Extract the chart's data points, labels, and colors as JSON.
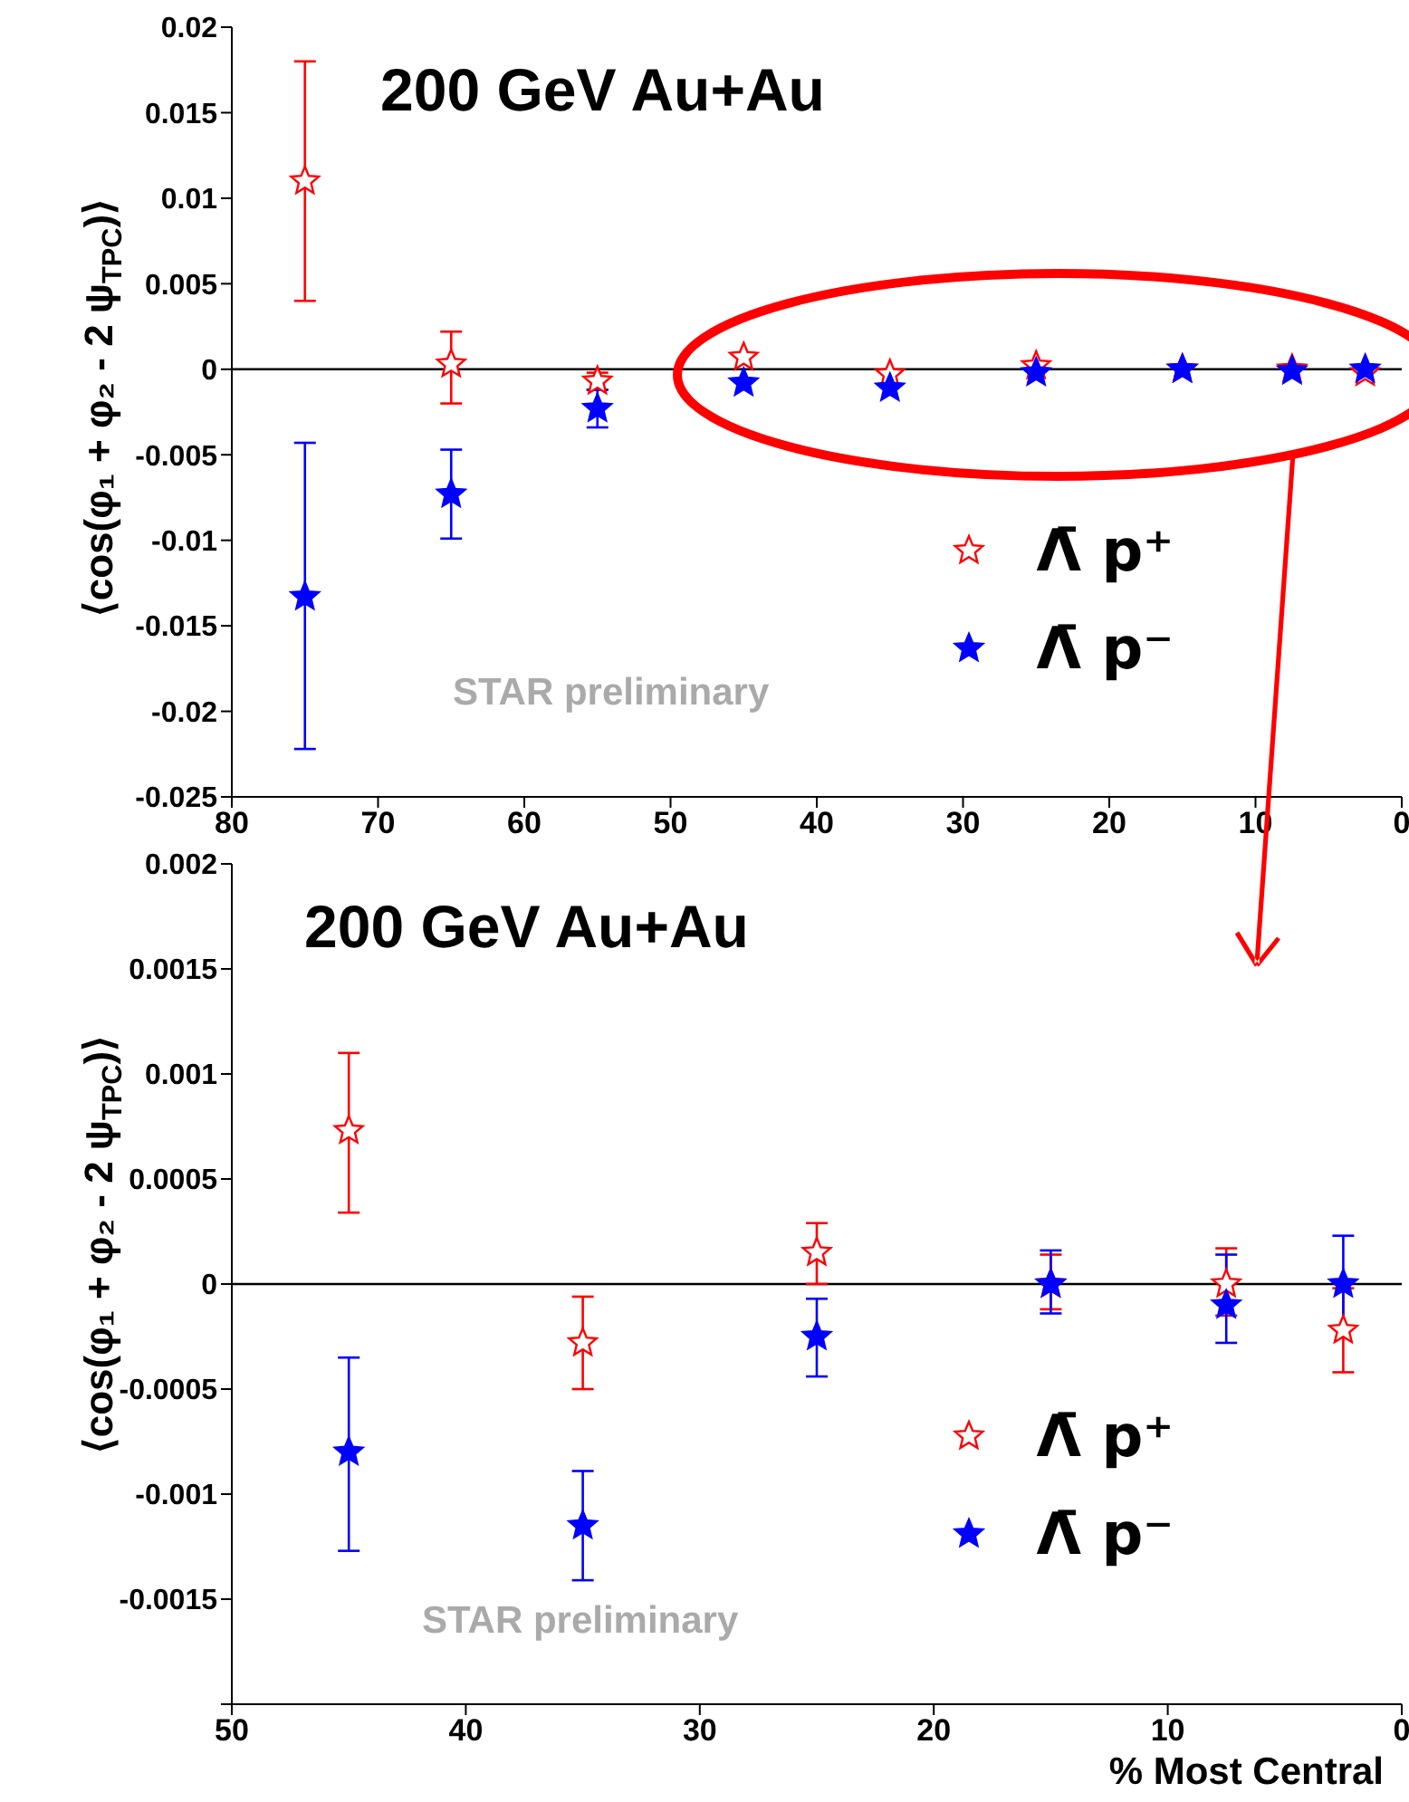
{
  "chart_data": [
    {
      "type": "scatter",
      "ylabel": "⟨cos(φ₁ + φ₂ - 2 ψ$_{TPC}$)⟩",
      "annotations": [
        "200 GeV Au+Au",
        "STAR preliminary"
      ],
      "xlim": [
        80,
        0
      ],
      "xticks": [
        80,
        70,
        60,
        50,
        40,
        30,
        20,
        10,
        0
      ],
      "ylim": [
        -0.025,
        0.02
      ],
      "yticks": [
        0.02,
        0.015,
        0.01,
        0.005,
        0,
        -0.005,
        -0.01,
        -0.015,
        -0.02,
        -0.025
      ],
      "marker": "star",
      "legend": "right",
      "grid": false,
      "ref_lines": [
        {
          "axis": "y",
          "value": 0,
          "color": "#000000"
        }
      ],
      "series": [
        {
          "name": "Λ̄ p⁺",
          "color": "#ff0000",
          "x": [
            75,
            65,
            55,
            45,
            35,
            25,
            15,
            7.5,
            2.5
          ],
          "values": [
            0.011,
            0.0003,
            -0.0007,
            0.0007,
            -0.0003,
            0.0002,
            0,
            0,
            -0.0002
          ],
          "errors": [
            [
              0.004,
              0.018
            ],
            [
              -0.002,
              0.0022
            ],
            [
              -0.0012,
              -0.0002
            ],
            null,
            null,
            null,
            null,
            null,
            null
          ]
        },
        {
          "name": "Λ̄ p⁻",
          "color": "#0000ff",
          "x": [
            75,
            65,
            55,
            45,
            35,
            25,
            15,
            7.5,
            2.5
          ],
          "values": [
            -0.0133,
            -0.0073,
            -0.0023,
            -0.0008,
            -0.0011,
            -0.0002,
            0,
            -0.0001,
            0
          ],
          "errors": [
            [
              -0.0222,
              -0.0043
            ],
            [
              -0.0099,
              -0.0047
            ],
            [
              -0.0034,
              -0.0012
            ],
            null,
            null,
            null,
            null,
            null,
            null
          ]
        }
      ]
    },
    {
      "type": "scatter",
      "ylabel": "⟨cos(φ₁ + φ₂ - 2 ψ$_{TPC}$)⟩",
      "xlabel": "% Most Central",
      "annotations": [
        "200 GeV Au+Au",
        "STAR preliminary"
      ],
      "xlim": [
        50,
        0
      ],
      "xticks": [
        50,
        40,
        30,
        20,
        10,
        0
      ],
      "ylim": [
        -0.002,
        0.002
      ],
      "yticks": [
        0.002,
        0.0015,
        0.001,
        0.0005,
        0,
        -0.0005,
        -0.001,
        -0.0015,
        {
          "value": -0.002,
          "label": null
        }
      ],
      "marker": "star",
      "legend": "right",
      "grid": false,
      "ref_lines": [
        {
          "axis": "y",
          "value": 0,
          "color": "#000000"
        }
      ],
      "series": [
        {
          "name": "Λ̄ p⁺",
          "color": "#ff0000",
          "x": [
            45,
            35,
            25,
            15,
            7.5,
            2.5
          ],
          "values": [
            0.00073,
            -0.00028,
            0.00015,
            0,
            0,
            -0.00022
          ],
          "errors": [
            [
              0.00034,
              0.0011
            ],
            [
              -0.0005,
              -6e-05
            ],
            [
              0,
              0.00029
            ],
            [
              -0.00012,
              0.00014
            ],
            [
              -0.00015,
              0.00017
            ],
            [
              -0.00042,
              -2e-05
            ]
          ]
        },
        {
          "name": "Λ̄ p⁻",
          "color": "#0000ff",
          "x": [
            45,
            35,
            25,
            15,
            7.5,
            2.5
          ],
          "values": [
            -0.0008,
            -0.00115,
            -0.00025,
            0,
            -0.0001,
            0
          ],
          "errors": [
            [
              -0.00127,
              -0.00035
            ],
            [
              -0.00141,
              -0.00089
            ],
            [
              -0.00044,
              -7e-05
            ],
            [
              -0.00014,
              0.00016
            ],
            [
              -0.00028,
              0.00014
            ],
            [
              -0.00021,
              0.00023
            ]
          ]
        }
      ]
    }
  ]
}
